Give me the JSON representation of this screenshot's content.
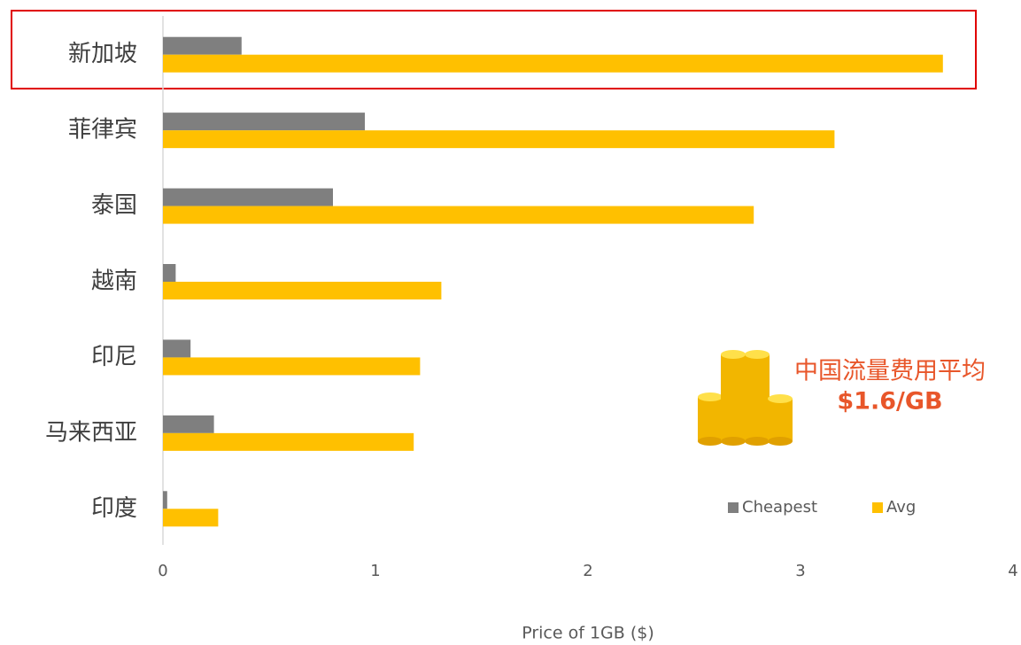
{
  "chart_data": {
    "type": "bar",
    "orientation": "horizontal",
    "categories": [
      "新加坡",
      "菲律宾",
      "泰国",
      "越南",
      "印尼",
      "马来西亚",
      "印度"
    ],
    "series": [
      {
        "name": "Cheapest",
        "color": "#7f7f7f",
        "values": [
          0.37,
          0.95,
          0.8,
          0.06,
          0.13,
          0.24,
          0.02
        ]
      },
      {
        "name": "Avg",
        "color": "#ffc000",
        "values": [
          3.67,
          3.16,
          2.78,
          1.31,
          1.21,
          1.18,
          0.26
        ]
      }
    ],
    "xlim": [
      0,
      4
    ],
    "xticks": [
      0,
      1,
      2,
      3,
      4
    ],
    "xlabel": "Price of 1GB ($)",
    "annotations": [
      "中国流量费用平均",
      "$1.6/GB"
    ],
    "annotation_color": "#e8562a",
    "legend": "lower right"
  }
}
